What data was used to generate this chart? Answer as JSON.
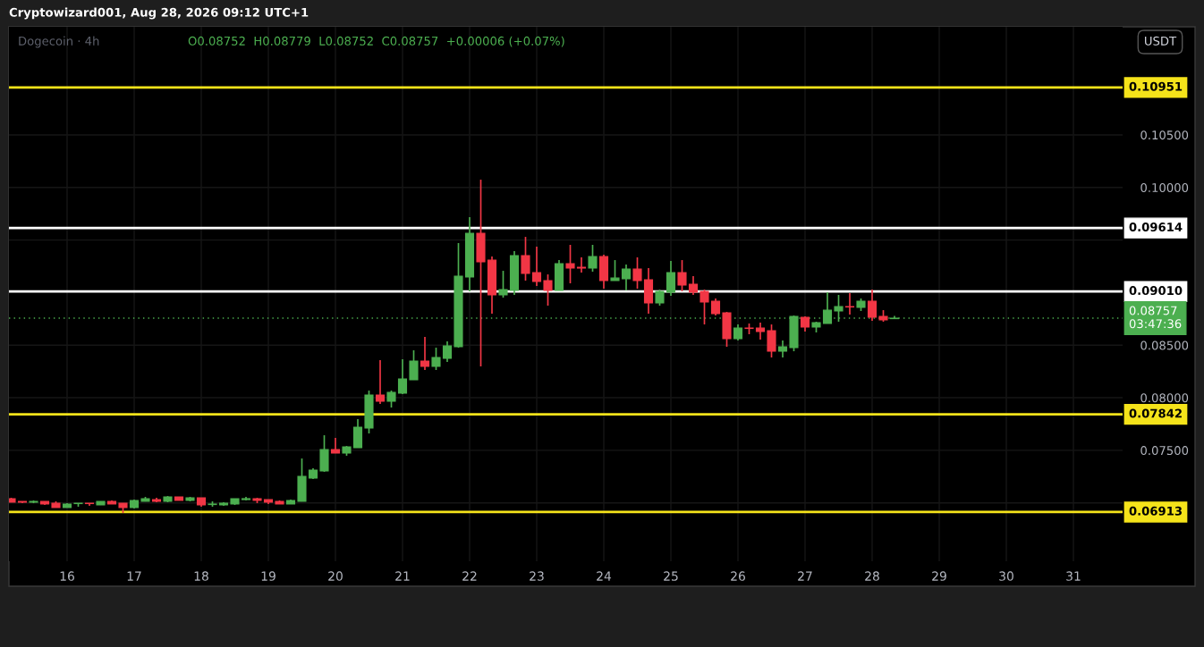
{
  "chart_data": {
    "type": "candlestick",
    "title": "Dogecoin · 4h",
    "ylabel": "USDT",
    "annotations": [
      "Cryptowizard001, Aug 28, 2026 09:12 UTC+1",
      "O0.08752  H0.08779  L0.08752  C0.08757  +0.00006 (+0.07%)"
    ],
    "x": [
      "2026-08-15T04:00",
      "2026-08-15T08:00",
      "2026-08-15T12:00",
      "2026-08-15T16:00",
      "2026-08-15T20:00",
      "2026-08-16T00:00",
      "2026-08-16T04:00",
      "2026-08-16T08:00",
      "2026-08-16T12:00",
      "2026-08-16T16:00",
      "2026-08-16T20:00",
      "2026-08-17T00:00",
      "2026-08-17T04:00",
      "2026-08-17T08:00",
      "2026-08-17T12:00",
      "2026-08-17T16:00",
      "2026-08-17T20:00",
      "2026-08-18T00:00",
      "2026-08-18T04:00",
      "2026-08-18T08:00",
      "2026-08-18T12:00",
      "2026-08-18T16:00",
      "2026-08-18T20:00",
      "2026-08-19T00:00",
      "2026-08-19T04:00",
      "2026-08-19T08:00",
      "2026-08-19T12:00",
      "2026-08-19T16:00",
      "2026-08-19T20:00",
      "2026-08-20T00:00",
      "2026-08-20T04:00",
      "2026-08-20T08:00",
      "2026-08-20T12:00",
      "2026-08-20T16:00",
      "2026-08-20T20:00",
      "2026-08-21T00:00",
      "2026-08-21T04:00",
      "2026-08-21T08:00",
      "2026-08-21T12:00",
      "2026-08-21T16:00",
      "2026-08-21T20:00",
      "2026-08-22T00:00",
      "2026-08-22T04:00",
      "2026-08-22T08:00",
      "2026-08-22T12:00",
      "2026-08-22T16:00",
      "2026-08-22T20:00",
      "2026-08-23T00:00",
      "2026-08-23T04:00",
      "2026-08-23T08:00",
      "2026-08-23T12:00",
      "2026-08-23T16:00",
      "2026-08-23T20:00",
      "2026-08-24T00:00",
      "2026-08-24T04:00",
      "2026-08-24T08:00",
      "2026-08-24T12:00",
      "2026-08-24T16:00",
      "2026-08-24T20:00",
      "2026-08-25T00:00",
      "2026-08-25T04:00",
      "2026-08-25T08:00",
      "2026-08-25T12:00",
      "2026-08-25T16:00",
      "2026-08-25T20:00",
      "2026-08-26T00:00",
      "2026-08-26T04:00",
      "2026-08-26T08:00",
      "2026-08-26T12:00",
      "2026-08-26T16:00",
      "2026-08-26T20:00",
      "2026-08-27T00:00",
      "2026-08-27T04:00",
      "2026-08-27T08:00",
      "2026-08-27T12:00",
      "2026-08-27T16:00",
      "2026-08-27T20:00",
      "2026-08-28T00:00",
      "2026-08-28T04:00",
      "2026-08-28T08:00"
    ],
    "ohlc": [
      [
        0.0704,
        0.07048,
        0.07006,
        0.07006
      ],
      [
        0.07014,
        0.07014,
        0.06997,
        0.07006
      ],
      [
        0.07006,
        0.07023,
        0.06997,
        0.07014
      ],
      [
        0.07014,
        0.07014,
        0.0698,
        0.06989
      ],
      [
        0.06997,
        0.07014,
        0.06955,
        0.06955
      ],
      [
        0.06955,
        0.06997,
        0.06955,
        0.06989
      ],
      [
        0.06993,
        0.06997,
        0.06963,
        0.06997
      ],
      [
        0.06997,
        0.06997,
        0.06972,
        0.06993
      ],
      [
        0.0698,
        0.07014,
        0.0698,
        0.07014
      ],
      [
        0.07014,
        0.07023,
        0.06989,
        0.06989
      ],
      [
        0.06997,
        0.06997,
        0.06904,
        0.06955
      ],
      [
        0.06955,
        0.07031,
        0.06946,
        0.07023
      ],
      [
        0.07014,
        0.07057,
        0.07014,
        0.0704
      ],
      [
        0.07031,
        0.07048,
        0.07006,
        0.07014
      ],
      [
        0.07014,
        0.07065,
        0.07006,
        0.07057
      ],
      [
        0.07057,
        0.07057,
        0.07023,
        0.07023
      ],
      [
        0.07023,
        0.07057,
        0.07014,
        0.07048
      ],
      [
        0.07048,
        0.07048,
        0.06963,
        0.0698
      ],
      [
        0.06984,
        0.07014,
        0.06963,
        0.06989
      ],
      [
        0.0698,
        0.07006,
        0.06972,
        0.06997
      ],
      [
        0.06989,
        0.0704,
        0.0698,
        0.0704
      ],
      [
        0.07031,
        0.07057,
        0.07023,
        0.0704
      ],
      [
        0.0704,
        0.07048,
        0.06997,
        0.07023
      ],
      [
        0.07031,
        0.07031,
        0.06989,
        0.07006
      ],
      [
        0.07014,
        0.07023,
        0.06989,
        0.06989
      ],
      [
        0.06989,
        0.07031,
        0.06989,
        0.07023
      ],
      [
        0.07014,
        0.07422,
        0.07014,
        0.07252
      ],
      [
        0.07235,
        0.07329,
        0.07227,
        0.07312
      ],
      [
        0.07303,
        0.07643,
        0.07295,
        0.07507
      ],
      [
        0.07507,
        0.07618,
        0.07473,
        0.07473
      ],
      [
        0.07473,
        0.07541,
        0.07448,
        0.07533
      ],
      [
        0.07524,
        0.07796,
        0.07524,
        0.0772
      ],
      [
        0.07711,
        0.08068,
        0.0766,
        0.08026
      ],
      [
        0.08026,
        0.08357,
        0.07941,
        0.07966
      ],
      [
        0.07966,
        0.08068,
        0.07907,
        0.08051
      ],
      [
        0.08043,
        0.08366,
        0.08034,
        0.08179
      ],
      [
        0.0817,
        0.08451,
        0.0817,
        0.08349
      ],
      [
        0.08349,
        0.08578,
        0.08264,
        0.08298
      ],
      [
        0.08298,
        0.08476,
        0.08264,
        0.08383
      ],
      [
        0.08374,
        0.08536,
        0.0834,
        0.08493
      ],
      [
        0.08485,
        0.09471,
        0.08476,
        0.09156
      ],
      [
        0.09148,
        0.09717,
        0.09012,
        0.09564
      ],
      [
        0.09564,
        0.10074,
        0.08298,
        0.09292
      ],
      [
        0.09309,
        0.09343,
        0.08799,
        0.08978
      ],
      [
        0.08978,
        0.09207,
        0.08952,
        0.09029
      ],
      [
        0.0902,
        0.09394,
        0.08978,
        0.09352
      ],
      [
        0.09352,
        0.0953,
        0.09114,
        0.09182
      ],
      [
        0.0919,
        0.09437,
        0.09063,
        0.09105
      ],
      [
        0.09114,
        0.09173,
        0.08876,
        0.0902
      ],
      [
        0.0902,
        0.09309,
        0.0902,
        0.09275
      ],
      [
        0.09275,
        0.09454,
        0.09088,
        0.09233
      ],
      [
        0.09241,
        0.09335,
        0.0919,
        0.09233
      ],
      [
        0.09233,
        0.09454,
        0.09199,
        0.09343
      ],
      [
        0.09343,
        0.0936,
        0.09037,
        0.09114
      ],
      [
        0.09114,
        0.09309,
        0.09114,
        0.09139
      ],
      [
        0.09131,
        0.09267,
        0.0902,
        0.09224
      ],
      [
        0.09224,
        0.09335,
        0.09037,
        0.09114
      ],
      [
        0.09122,
        0.09233,
        0.08799,
        0.08901
      ],
      [
        0.08901,
        0.09029,
        0.08876,
        0.09012
      ],
      [
        0.09003,
        0.09301,
        0.08969,
        0.0919
      ],
      [
        0.0919,
        0.09309,
        0.09012,
        0.09071
      ],
      [
        0.0908,
        0.09156,
        0.08978,
        0.09003
      ],
      [
        0.09012,
        0.09029,
        0.08697,
        0.0891
      ],
      [
        0.08918,
        0.08944,
        0.08782,
        0.08799
      ],
      [
        0.08808,
        0.08816,
        0.08485,
        0.08561
      ],
      [
        0.08561,
        0.08697,
        0.08544,
        0.08663
      ],
      [
        0.08663,
        0.08706,
        0.08604,
        0.08659
      ],
      [
        0.08663,
        0.08714,
        0.08553,
        0.08629
      ],
      [
        0.08638,
        0.08697,
        0.08383,
        0.08442
      ],
      [
        0.08442,
        0.08544,
        0.08383,
        0.08485
      ],
      [
        0.08476,
        0.08782,
        0.08442,
        0.08774
      ],
      [
        0.08765,
        0.08774,
        0.08629,
        0.08672
      ],
      [
        0.08672,
        0.08723,
        0.08621,
        0.08714
      ],
      [
        0.08706,
        0.09003,
        0.08706,
        0.08833
      ],
      [
        0.08825,
        0.08978,
        0.08723,
        0.08867
      ],
      [
        0.08867,
        0.08995,
        0.08791,
        0.08863
      ],
      [
        0.08859,
        0.08944,
        0.08825,
        0.08918
      ],
      [
        0.08918,
        0.09029,
        0.08731,
        0.08765
      ],
      [
        0.08774,
        0.08833,
        0.08723,
        0.0874
      ],
      [
        0.08752,
        0.08779,
        0.08752,
        0.08757
      ]
    ],
    "colors": [
      "#f23645",
      "#f23645",
      "#4caf50",
      "#f23645",
      "#f23645",
      "#4caf50",
      "#4caf50",
      "#f23645",
      "#4caf50",
      "#f23645",
      "#f23645",
      "#4caf50",
      "#4caf50",
      "#f23645",
      "#4caf50",
      "#f23645",
      "#4caf50",
      "#f23645",
      "#4caf50",
      "#4caf50",
      "#4caf50",
      "#4caf50",
      "#f23645",
      "#f23645",
      "#f23645",
      "#4caf50",
      "#4caf50",
      "#4caf50",
      "#4caf50",
      "#f23645",
      "#4caf50",
      "#4caf50",
      "#4caf50",
      "#f23645",
      "#4caf50",
      "#4caf50",
      "#4caf50",
      "#f23645",
      "#4caf50",
      "#4caf50",
      "#4caf50",
      "#4caf50",
      "#f23645",
      "#f23645",
      "#4caf50",
      "#4caf50",
      "#f23645",
      "#f23645",
      "#f23645",
      "#4caf50",
      "#f23645",
      "#f23645",
      "#4caf50",
      "#f23645",
      "#4caf50",
      "#4caf50",
      "#f23645",
      "#f23645",
      "#4caf50",
      "#4caf50",
      "#f23645",
      "#f23645",
      "#f23645",
      "#f23645",
      "#f23645",
      "#4caf50",
      "#f23645",
      "#f23645",
      "#f23645",
      "#4caf50",
      "#4caf50",
      "#f23645",
      "#4caf50",
      "#4caf50",
      "#4caf50",
      "#f23645",
      "#4caf50",
      "#f23645",
      "#f23645",
      "#4caf50"
    ],
    "xlim": [
      "2026-08-15T03:12",
      "2026-08-31T17:36"
    ],
    "xticks": [
      {
        "value": "2026-08-16",
        "label": "16"
      },
      {
        "value": "2026-08-17",
        "label": "17"
      },
      {
        "value": "2026-08-18",
        "label": "18"
      },
      {
        "value": "2026-08-19",
        "label": "19"
      },
      {
        "value": "2026-08-20",
        "label": "20"
      },
      {
        "value": "2026-08-21",
        "label": "21"
      },
      {
        "value": "2026-08-22",
        "label": "22"
      },
      {
        "value": "2026-08-23",
        "label": "23"
      },
      {
        "value": "2026-08-24",
        "label": "24"
      },
      {
        "value": "2026-08-25",
        "label": "25"
      },
      {
        "value": "2026-08-26",
        "label": "26"
      },
      {
        "value": "2026-08-27",
        "label": "27"
      },
      {
        "value": "2026-08-28",
        "label": "28"
      },
      {
        "value": "2026-08-29",
        "label": "29"
      },
      {
        "value": "2026-08-30",
        "label": "30"
      },
      {
        "value": "2026-08-31",
        "label": "31"
      }
    ],
    "ylim": [
      0.06445,
      0.11528
    ],
    "yticks": [
      {
        "value": 0.07,
        "label": null
      },
      {
        "value": 0.075,
        "label": "0.07500"
      },
      {
        "value": 0.08,
        "label": "0.08000"
      },
      {
        "value": 0.085,
        "label": "0.08500"
      },
      {
        "value": 0.095,
        "label": null
      },
      {
        "value": 0.1,
        "label": "0.10000"
      },
      {
        "value": 0.105,
        "label": "0.10500"
      }
    ],
    "ref_lines": [
      {
        "axis": "y",
        "value": 0.10951,
        "label": "0.10951",
        "color": "#f5e31a",
        "line_style": "solid"
      },
      {
        "axis": "y",
        "value": 0.09614,
        "label": "0.09614",
        "color": "#ffffff",
        "line_style": "solid"
      },
      {
        "axis": "y",
        "value": 0.0901,
        "label": "0.09010",
        "color": "#ffffff",
        "line_style": "solid"
      },
      {
        "axis": "y",
        "value": 0.08757,
        "label": "0.08757\n03:47:36",
        "color": "#4caf50",
        "line_style": "dotted"
      },
      {
        "axis": "y",
        "value": 0.07842,
        "label": "0.07842",
        "color": "#f5e31a",
        "line_style": "solid"
      },
      {
        "axis": "y",
        "value": 0.06913,
        "label": "0.06913",
        "color": "#f5e31a",
        "line_style": "solid"
      }
    ],
    "grid": true
  }
}
